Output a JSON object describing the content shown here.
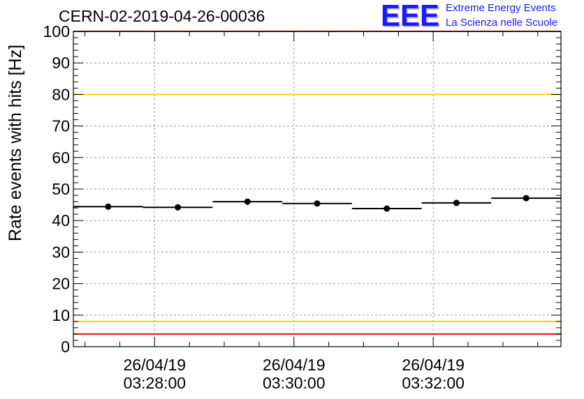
{
  "chart_data": {
    "type": "scatter",
    "title": "CERN-02-2019-04-26-00036",
    "ylabel": "Rate events with hits [Hz]",
    "xlabel": "",
    "ylim": [
      0,
      100
    ],
    "yticks": [
      "0",
      "10",
      "20",
      "30",
      "40",
      "50",
      "60",
      "70",
      "80",
      "90",
      "100"
    ],
    "xticks": [
      {
        "date": "26/04/19",
        "time": "03:28:00"
      },
      {
        "date": "26/04/19",
        "time": "03:30:00"
      },
      {
        "date": "26/04/19",
        "time": "03:32:00"
      }
    ],
    "x_start": "03:26:50",
    "bin_seconds": 60,
    "values": [
      44.4,
      44.2,
      46.0,
      45.4,
      43.8,
      45.6,
      47.1
    ],
    "reference_lines": [
      {
        "value": 100,
        "color": "#ff0000"
      },
      {
        "value": 80,
        "color": "#f5d000"
      },
      {
        "value": 8,
        "color": "#f5d000"
      },
      {
        "value": 4,
        "color": "#ff0000"
      }
    ],
    "grid": true
  },
  "logo": {
    "text": "EEE",
    "line1": "Extreme Energy Events",
    "line2": "La Scienza nelle Scuole",
    "color": "#1a1aff"
  }
}
